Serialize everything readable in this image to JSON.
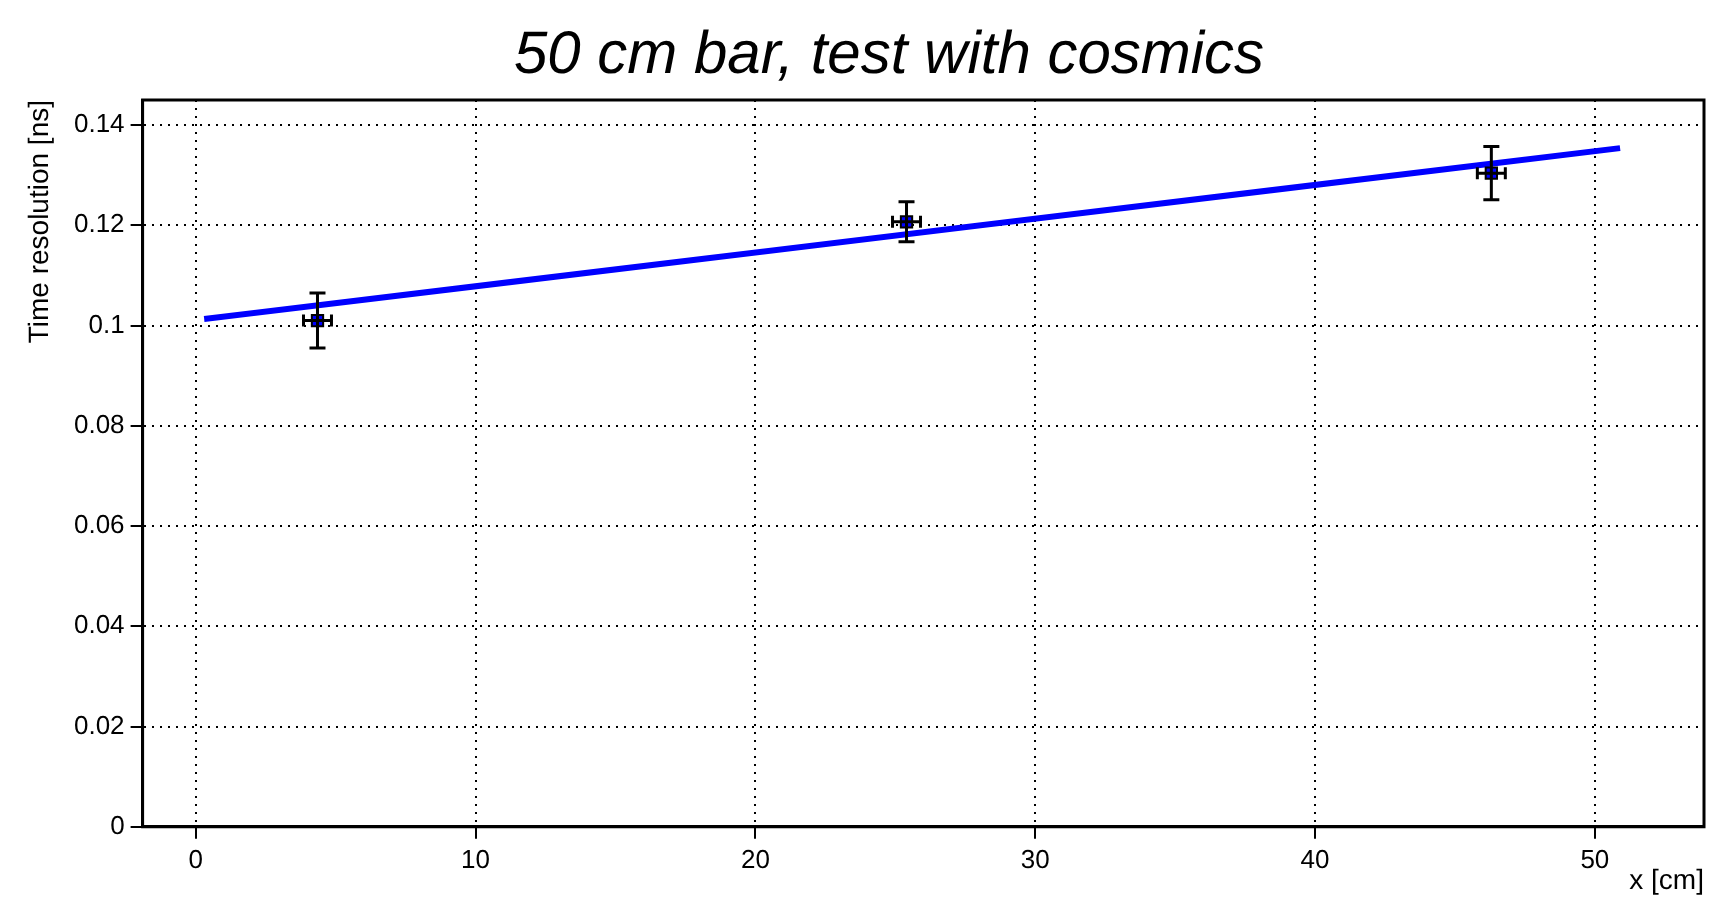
{
  "chart_data": {
    "type": "scatter",
    "title": "50 cm bar, test with cosmics",
    "xlabel": "x [cm]",
    "ylabel": "Time resolution [ns]",
    "xlim": [
      -1.9,
      53.9
    ],
    "xticks": [
      0,
      10,
      20,
      30,
      40,
      50
    ],
    "ylim": [
      0,
      0.145
    ],
    "yticks": [
      0,
      0.02,
      0.04,
      0.06,
      0.08,
      0.1,
      0.12,
      0.14
    ],
    "grid": true,
    "legend": false,
    "series": [
      {
        "color": "#0000ff",
        "marker": "square",
        "x": [
          4.35,
          25.4,
          46.3
        ],
        "values": [
          0.101,
          0.1207,
          0.1304
        ],
        "errors": [
          0.0055,
          0.004,
          0.0053
        ],
        "xerrors": [
          0.5,
          0.5,
          0.5
        ]
      },
      {
        "type": "line",
        "color": "#0000ff",
        "marker": "none",
        "line_style": "solid",
        "x": [
          0.3,
          50.9
        ],
        "values": [
          0.1013,
          0.1354
        ]
      }
    ]
  }
}
